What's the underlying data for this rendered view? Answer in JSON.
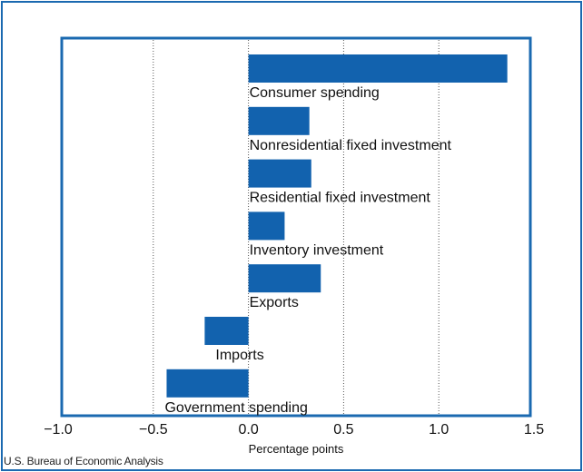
{
  "source_note": "U.S. Bureau of Economic Analysis",
  "colors": {
    "bar": "#1262ae",
    "border": "#1a69b0",
    "gridline": "#555555",
    "text": "#111111"
  },
  "chart_data": {
    "type": "bar",
    "orientation": "horizontal",
    "title": "",
    "xlabel": "Percentage points",
    "ylabel": "",
    "xlim": [
      -1.0,
      1.5
    ],
    "xticks": [
      -1.0,
      -0.5,
      0.0,
      0.5,
      1.0,
      1.5
    ],
    "xtick_labels": [
      "−1.0",
      "−0.5",
      "0.0",
      "0.5",
      "1.0",
      "1.5"
    ],
    "grid": "vertical dotted",
    "categories": [
      "Consumer spending",
      "Nonresidential fixed investment",
      "Residential fixed investment",
      "Inventory investment",
      "Exports",
      "Imports",
      "Government spending"
    ],
    "values": [
      1.36,
      0.32,
      0.33,
      0.19,
      0.38,
      -0.23,
      -0.43
    ]
  }
}
